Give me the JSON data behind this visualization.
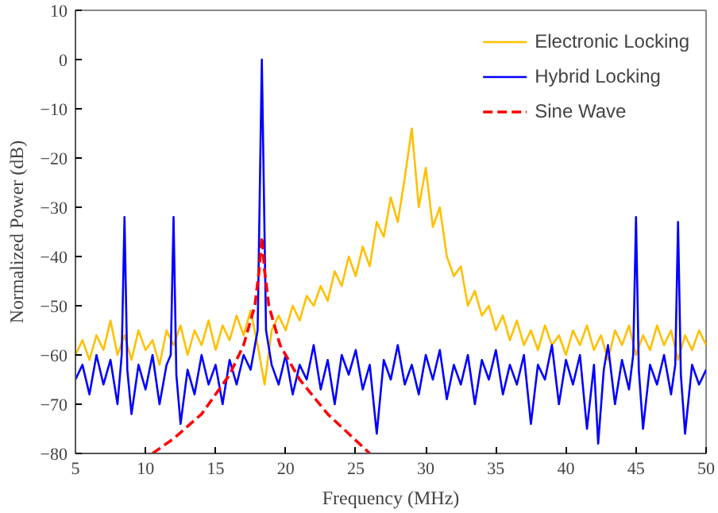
{
  "chart_data": {
    "type": "line",
    "xlabel": "Frequency (MHz)",
    "ylabel": "Normalized Power (dB)",
    "xlim": [
      5,
      50
    ],
    "ylim": [
      -80,
      10
    ],
    "xticks": [
      5,
      10,
      15,
      20,
      25,
      30,
      35,
      40,
      45,
      50
    ],
    "yticks": [
      -80,
      -70,
      -60,
      -50,
      -40,
      -30,
      -20,
      -10,
      0,
      10
    ],
    "grid": false,
    "legend": "top right",
    "marker": "none",
    "series": [
      {
        "name": "Electronic Locking",
        "color": "#ffc000",
        "line_style": "solid",
        "x": [
          5,
          5.5,
          6,
          6.5,
          7,
          7.5,
          8,
          8.5,
          9,
          9.5,
          10,
          10.5,
          11,
          11.5,
          12,
          12.5,
          13,
          13.5,
          14,
          14.5,
          15,
          15.5,
          16,
          16.5,
          17,
          17.5,
          18,
          18.5,
          19,
          19.5,
          20,
          20.5,
          21,
          21.5,
          22,
          22.5,
          23,
          23.5,
          24,
          24.5,
          25,
          25.5,
          26,
          26.5,
          27,
          27.5,
          28,
          28.5,
          29,
          29.5,
          30,
          30.5,
          31,
          31.5,
          32,
          32.5,
          33,
          33.5,
          34,
          34.5,
          35,
          35.5,
          36,
          36.5,
          37,
          37.5,
          38,
          38.5,
          39,
          39.5,
          40,
          40.5,
          41,
          41.5,
          42,
          42.5,
          43,
          43.5,
          44,
          44.5,
          45,
          45.5,
          46,
          46.5,
          47,
          47.5,
          48,
          48.5,
          49,
          49.5,
          50
        ],
        "values": [
          -60,
          -57,
          -61,
          -56,
          -59,
          -53,
          -60,
          -56,
          -61,
          -55,
          -59,
          -57,
          -62,
          -55,
          -58,
          -54,
          -60,
          -55,
          -58,
          -53,
          -59,
          -54,
          -57,
          -52,
          -56,
          -51,
          -58,
          -66,
          -55,
          -52,
          -55,
          -50,
          -53,
          -48,
          -50,
          -46,
          -49,
          -43,
          -46,
          -40,
          -44,
          -38,
          -42,
          -33,
          -36,
          -28,
          -33,
          -24,
          -14,
          -30,
          -22,
          -34,
          -30,
          -40,
          -44,
          -42,
          -50,
          -47,
          -52,
          -50,
          -55,
          -52,
          -57,
          -53,
          -58,
          -55,
          -59,
          -54,
          -58,
          -56,
          -60,
          -55,
          -58,
          -54,
          -59,
          -56,
          -61,
          -55,
          -58,
          -54,
          -60,
          -56,
          -59,
          -54,
          -58,
          -55,
          -61,
          -56,
          -59,
          -55,
          -58
        ]
      },
      {
        "name": "Hybrid Locking",
        "color": "#0000ff",
        "line_style": "solid",
        "x": [
          5,
          5.5,
          6,
          6.5,
          7,
          7.5,
          8,
          8.3,
          8.5,
          8.7,
          9,
          9.5,
          10,
          10.5,
          11,
          11.5,
          11.8,
          12,
          12.2,
          12.5,
          13,
          13.5,
          14,
          14.5,
          15,
          15.5,
          16,
          16.5,
          17,
          17.5,
          18,
          18.3,
          18.6,
          19,
          19.5,
          20,
          20.5,
          21,
          21.5,
          22,
          22.5,
          23,
          23.5,
          24,
          24.5,
          25,
          25.5,
          26,
          26.5,
          27,
          27.5,
          28,
          28.5,
          29,
          29.5,
          30,
          30.5,
          31,
          31.5,
          32,
          32.5,
          33,
          33.5,
          34,
          34.5,
          35,
          35.5,
          36,
          36.5,
          37,
          37.5,
          38,
          38.5,
          39,
          39.5,
          40,
          40.5,
          41,
          41.5,
          42,
          42.3,
          42.7,
          43,
          43.5,
          44,
          44.5,
          44.8,
          45,
          45.2,
          45.5,
          46,
          46.5,
          47,
          47.5,
          47.8,
          48,
          48.2,
          48.5,
          49,
          49.5,
          50
        ],
        "values": [
          -65,
          -62,
          -68,
          -60,
          -66,
          -61,
          -70,
          -60,
          -32,
          -63,
          -72,
          -62,
          -67,
          -60,
          -70,
          -62,
          -60,
          -32,
          -64,
          -74,
          -63,
          -68,
          -60,
          -66,
          -62,
          -70,
          -61,
          -66,
          -60,
          -63,
          -55,
          0,
          -55,
          -62,
          -66,
          -60,
          -68,
          -62,
          -65,
          -58,
          -67,
          -61,
          -70,
          -60,
          -64,
          -59,
          -67,
          -62,
          -76,
          -61,
          -65,
          -58,
          -66,
          -62,
          -68,
          -60,
          -65,
          -59,
          -69,
          -62,
          -66,
          -60,
          -70,
          -61,
          -65,
          -59,
          -68,
          -62,
          -66,
          -60,
          -74,
          -62,
          -65,
          -58,
          -70,
          -61,
          -66,
          -60,
          -75,
          -62,
          -78,
          -63,
          -58,
          -70,
          -61,
          -67,
          -60,
          -32,
          -63,
          -75,
          -62,
          -66,
          -60,
          -68,
          -62,
          -33,
          -64,
          -76,
          -62,
          -66,
          -63
        ]
      },
      {
        "name": "Sine Wave",
        "color": "#ff0000",
        "line_style": "dashed",
        "x": [
          10.5,
          12,
          14,
          16,
          17,
          17.8,
          18.1,
          18.3,
          18.5,
          18.8,
          19.6,
          21,
          23,
          26
        ],
        "values": [
          -80,
          -77,
          -72,
          -64,
          -58,
          -50,
          -43,
          -36,
          -43,
          -50,
          -58,
          -65,
          -72,
          -80
        ]
      }
    ]
  }
}
